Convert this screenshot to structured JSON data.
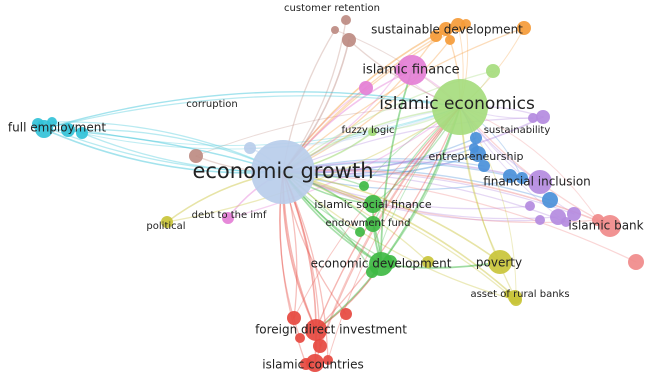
{
  "colors": {
    "blue_light": "#b9cdea",
    "green_light": "#a6dc7e",
    "pink": "#e47fd6",
    "orange": "#f59b38",
    "brown": "#bd8b82",
    "cyan": "#33c2d8",
    "blue": "#4a90d9",
    "purple": "#b48be0",
    "salmon": "#f08a8a",
    "green": "#3fba44",
    "olive": "#c9c43a",
    "red": "#e6483f",
    "background": "#ffffff"
  },
  "clusters": [
    {
      "id": "c-blue-light",
      "color": "blue_light",
      "terms": [
        {
          "label": "economic growth",
          "weight": 1.0
        },
        {
          "label": "corruption",
          "weight": 0.2
        }
      ]
    },
    {
      "id": "c-green-light",
      "color": "green_light",
      "terms": [
        {
          "label": "islamic economics",
          "weight": 0.95
        },
        {
          "label": "fuzzy logic",
          "weight": 0.15
        }
      ]
    },
    {
      "id": "c-pink",
      "color": "pink",
      "terms": [
        {
          "label": "islamic finance",
          "weight": 0.55
        },
        {
          "label": "debt to the imf",
          "weight": 0.15
        }
      ]
    },
    {
      "id": "c-orange",
      "color": "orange",
      "terms": [
        {
          "label": "sustainable development",
          "weight": 0.3
        }
      ]
    },
    {
      "id": "c-brown",
      "color": "brown",
      "terms": [
        {
          "label": "customer retention",
          "weight": 0.25
        }
      ]
    },
    {
      "id": "c-cyan",
      "color": "cyan",
      "terms": [
        {
          "label": "full employment",
          "weight": 0.3
        }
      ]
    },
    {
      "id": "c-blue",
      "color": "blue",
      "terms": [
        {
          "label": "entrepreneurship",
          "weight": 0.3
        }
      ]
    },
    {
      "id": "c-purple",
      "color": "purple",
      "terms": [
        {
          "label": "financial inclusion",
          "weight": 0.45
        },
        {
          "label": "sustainability",
          "weight": 0.2
        }
      ]
    },
    {
      "id": "c-salmon",
      "color": "salmon",
      "terms": [
        {
          "label": "islamic bank",
          "weight": 0.35
        }
      ]
    },
    {
      "id": "c-green",
      "color": "green",
      "terms": [
        {
          "label": "islamic social finance",
          "weight": 0.35
        },
        {
          "label": "endowment fund",
          "weight": 0.25
        },
        {
          "label": "economic development",
          "weight": 0.45
        }
      ]
    },
    {
      "id": "c-olive",
      "color": "olive",
      "terms": [
        {
          "label": "poverty",
          "weight": 0.4
        },
        {
          "label": "political",
          "weight": 0.2
        },
        {
          "label": "asset of rural banks",
          "weight": 0.2
        }
      ]
    },
    {
      "id": "c-red",
      "color": "red",
      "terms": [
        {
          "label": "foreign direct investment",
          "weight": 0.45
        },
        {
          "label": "islamic countries",
          "weight": 0.35
        }
      ]
    }
  ]
}
